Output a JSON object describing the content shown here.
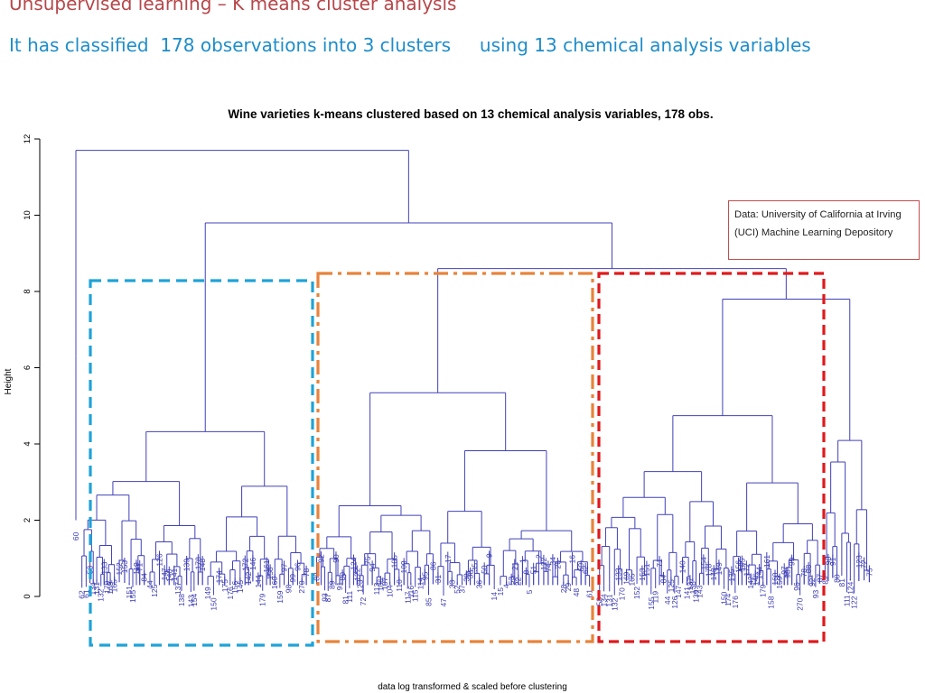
{
  "slide": {
    "title": "Unsupervised learning – K means cluster analysis",
    "subtitle_part1": "It has classified  178 observations into 3 clusters",
    "subtitle_part2": "using 13 chemical analysis variables"
  },
  "note": "Data: University of California at Irving (UCI) Machine Learning Depository",
  "chart_data": {
    "type": "dendrogram",
    "title": "Wine varieties  k-means clustered based on 13 chemical analysis variables, 178 obs.",
    "ylabel": "Height",
    "xlabel": "data  log transformed & scaled before clustering",
    "ylim": [
      0,
      12
    ],
    "yticks": [
      0,
      2,
      4,
      6,
      8,
      10,
      12
    ],
    "grid": false,
    "clusters_highlighted": [
      {
        "color": "#1fa3d8",
        "style": "dashed"
      },
      {
        "color": "#e8833a",
        "style": "dash-dot"
      },
      {
        "color": "#e0191c",
        "style": "dashed"
      }
    ],
    "merge_heights_approx": [
      11.7,
      9.8,
      8.6,
      8.0,
      7.8,
      7.7,
      6.9,
      6.4,
      6.1,
      5.8,
      5.5,
      4.9,
      4.4,
      4.2,
      3.9,
      3.5,
      3.2,
      2.9,
      2.6,
      2.3,
      2.0,
      1.7,
      1.4
    ],
    "visible_leaf_labels": [
      "60",
      "62",
      "61",
      "58",
      "134",
      "131",
      "132",
      "133",
      "170",
      "169",
      "165",
      "152",
      "153",
      "151",
      "155",
      "119",
      "71",
      "84",
      "44",
      "125",
      "126",
      "147",
      "140",
      "141",
      "137",
      "138",
      "139",
      "143",
      "154",
      "178",
      "148",
      "149",
      "150",
      "174",
      "175",
      "176",
      "156",
      "145",
      "172",
      "142",
      "146",
      "144",
      "179",
      "161",
      "158",
      "160",
      "159",
      "97",
      "98",
      "99",
      "96",
      "270",
      "78",
      "88",
      "92",
      "93",
      "87",
      "89",
      "90",
      "91",
      "80",
      "81",
      "111",
      "124",
      "122",
      "123",
      "72",
      "75",
      "94",
      "113",
      "106",
      "107",
      "104",
      "105",
      "110",
      "109",
      "117",
      "116",
      "115",
      "114",
      "95",
      "85",
      "86",
      "31",
      "47",
      "17",
      "33",
      "52",
      "37",
      "39",
      "38",
      "35",
      "36",
      "50",
      "9",
      "14",
      "15",
      "4",
      "53",
      "21",
      "22",
      "1",
      "8",
      "5",
      "51",
      "2",
      "122",
      "74",
      "34",
      "26",
      "28",
      "29",
      "16",
      "48"
    ]
  }
}
